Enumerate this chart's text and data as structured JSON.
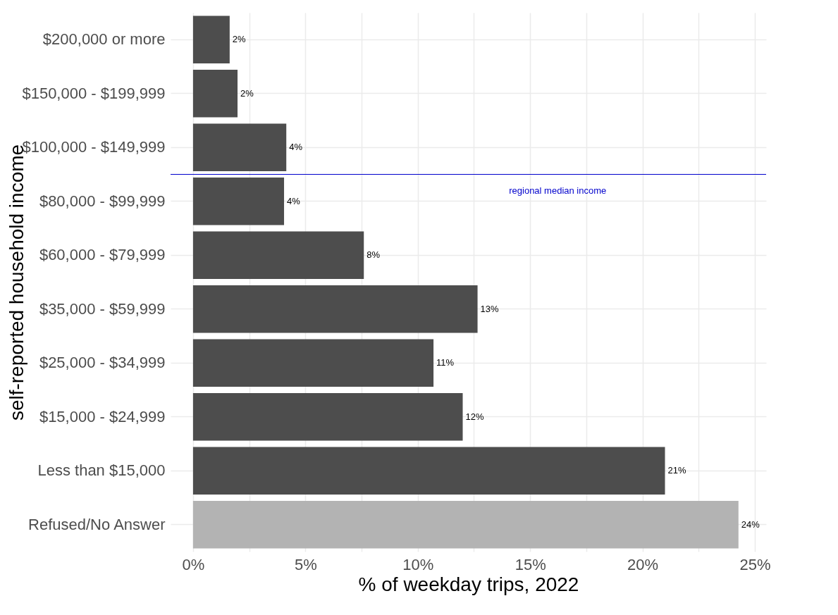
{
  "chart_data": {
    "type": "bar",
    "orientation": "horizontal",
    "xlabel": "% of weekday trips, 2022",
    "ylabel": "self-reported household income",
    "categories": [
      "$200,000 or more",
      "$150,000 - $199,999",
      "$100,000 - $149,999",
      "$80,000 - $99,999",
      "$60,000 - $79,999",
      "$35,000 - $59,999",
      "$25,000 - $34,999",
      "$15,000 - $24,999",
      "Less than $15,000",
      "Refused/No Answer"
    ],
    "values": [
      1.63,
      1.98,
      4.15,
      4.05,
      7.6,
      12.66,
      10.7,
      12.0,
      21.0,
      24.27
    ],
    "value_labels": [
      "2%",
      "2%",
      "4%",
      "4%",
      "8%",
      "13%",
      "11%",
      "12%",
      "21%",
      "24%"
    ],
    "colors": [
      "#4d4d4d",
      "#4d4d4d",
      "#4d4d4d",
      "#4d4d4d",
      "#4d4d4d",
      "#4d4d4d",
      "#4d4d4d",
      "#4d4d4d",
      "#4d4d4d",
      "#b3b3b3"
    ],
    "xlim": [
      -1,
      25.5
    ],
    "xticks": [
      {
        "value": 0,
        "label": "0%"
      },
      {
        "value": 2.5,
        "label": null
      },
      {
        "value": 5,
        "label": "5%"
      },
      {
        "value": 7.5,
        "label": null
      },
      {
        "value": 10,
        "label": "10%"
      },
      {
        "value": 12.5,
        "label": null
      },
      {
        "value": 15,
        "label": "15%"
      },
      {
        "value": 17.5,
        "label": null
      },
      {
        "value": 20,
        "label": "20%"
      },
      {
        "value": 22.5,
        "label": null
      },
      {
        "value": 25,
        "label": "25%"
      }
    ],
    "ref_lines": [
      {
        "axis": "y",
        "value": "$80,000 - $99,999",
        "label": "regional median income",
        "color": "#0000cc"
      }
    ],
    "grid": true
  }
}
